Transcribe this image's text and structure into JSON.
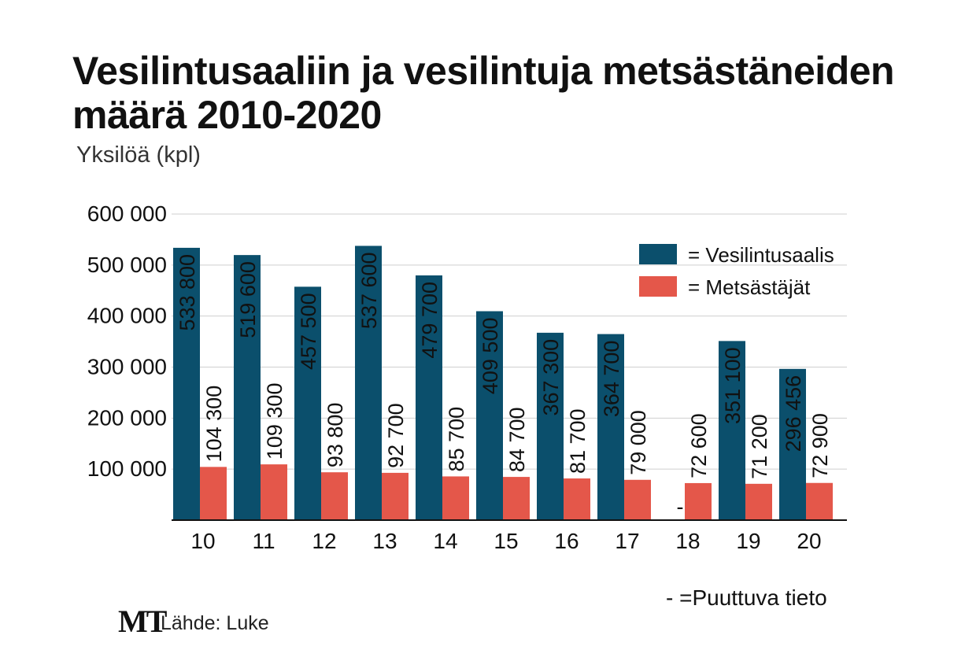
{
  "title": "Vesilintusaaliin ja vesilintuja metsästäneiden määrä 2010-2020",
  "subtitle": "Yksilöä (kpl)",
  "colors": {
    "catch": "#0b4f6c",
    "hunters": "#e4574a",
    "grid": "#cfcfcf",
    "axis": "#111111"
  },
  "legend": {
    "catch": "= Vesilintusaalis",
    "hunters": "= Metsästäjät"
  },
  "missing_marker": "-",
  "missing_note": "- =Puuttuva tieto",
  "footer": {
    "logo": "MT",
    "source": "Lähde: Luke"
  },
  "chart_data": {
    "type": "bar",
    "title": "Vesilintusaaliin ja vesilintuja metsästäneiden määrä 2010-2020",
    "ylabel": "Yksilöä (kpl)",
    "xlabel": "",
    "ylim": [
      0,
      600000
    ],
    "yticks": [
      100000,
      200000,
      300000,
      400000,
      500000,
      600000
    ],
    "ytick_labels": [
      "100 000",
      "200 000",
      "300 000",
      "400 000",
      "500 000",
      "600 000"
    ],
    "categories": [
      "10",
      "11",
      "12",
      "13",
      "14",
      "15",
      "16",
      "17",
      "18",
      "19",
      "20"
    ],
    "series": [
      {
        "name": "Vesilintusaalis",
        "values": [
          533800,
          519600,
          457500,
          537600,
          479700,
          409500,
          367300,
          364700,
          null,
          351100,
          296456
        ],
        "labels": [
          "533 800",
          "519 600",
          "457 500",
          "537 600",
          "479 700",
          "409 500",
          "367 300",
          "364 700",
          null,
          "351 100",
          "296 456"
        ]
      },
      {
        "name": "Metsästäjät",
        "values": [
          104300,
          109300,
          93800,
          92700,
          85700,
          84700,
          81700,
          79000,
          72600,
          71200,
          72900
        ],
        "labels": [
          "104 300",
          "109 300",
          "93 800",
          "92 700",
          "85 700",
          "84 700",
          "81 700",
          "79 000",
          "72 600",
          "71 200",
          "72 900"
        ]
      }
    ],
    "grid": true,
    "legend_position": "top-right"
  }
}
